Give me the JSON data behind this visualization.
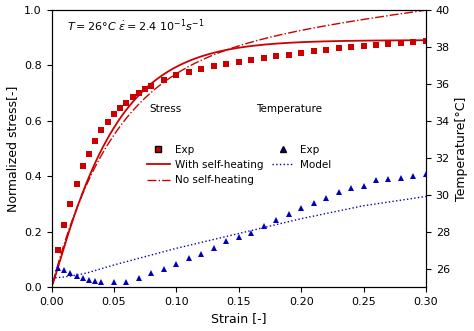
{
  "xlabel": "Strain [-]",
  "ylabel_left": "Normalized stress[-]",
  "ylabel_right": "Temperature[°C]",
  "xlim": [
    0,
    0.3
  ],
  "ylim_left": [
    0,
    1.0
  ],
  "ylim_right": [
    25,
    40
  ],
  "stress_exp_x": [
    0.005,
    0.01,
    0.015,
    0.02,
    0.025,
    0.03,
    0.035,
    0.04,
    0.045,
    0.05,
    0.055,
    0.06,
    0.065,
    0.07,
    0.075,
    0.08,
    0.09,
    0.1,
    0.11,
    0.12,
    0.13,
    0.14,
    0.15,
    0.16,
    0.17,
    0.18,
    0.19,
    0.2,
    0.21,
    0.22,
    0.23,
    0.24,
    0.25,
    0.26,
    0.27,
    0.28,
    0.29,
    0.3
  ],
  "stress_exp_y": [
    0.135,
    0.225,
    0.3,
    0.37,
    0.435,
    0.48,
    0.525,
    0.565,
    0.595,
    0.625,
    0.645,
    0.665,
    0.685,
    0.7,
    0.715,
    0.725,
    0.745,
    0.765,
    0.775,
    0.785,
    0.795,
    0.805,
    0.812,
    0.818,
    0.825,
    0.832,
    0.838,
    0.845,
    0.85,
    0.856,
    0.86,
    0.865,
    0.868,
    0.872,
    0.876,
    0.88,
    0.882,
    0.886
  ],
  "temp_exp_x": [
    0.005,
    0.01,
    0.015,
    0.02,
    0.025,
    0.03,
    0.035,
    0.04,
    0.05,
    0.06,
    0.07,
    0.08,
    0.09,
    0.1,
    0.11,
    0.12,
    0.13,
    0.14,
    0.15,
    0.16,
    0.17,
    0.18,
    0.19,
    0.2,
    0.21,
    0.22,
    0.23,
    0.24,
    0.25,
    0.26,
    0.27,
    0.28,
    0.29,
    0.3
  ],
  "temp_exp_y": [
    26.06,
    25.95,
    25.75,
    25.6,
    25.5,
    25.38,
    25.35,
    25.3,
    25.28,
    25.3,
    25.5,
    25.75,
    26.0,
    26.25,
    26.55,
    26.8,
    27.1,
    27.5,
    27.7,
    27.95,
    28.3,
    28.65,
    28.95,
    29.3,
    29.55,
    29.8,
    30.15,
    30.35,
    30.45,
    30.8,
    30.85,
    30.92,
    31.0,
    31.1
  ],
  "temp_model_x": [
    0.0,
    0.005,
    0.01,
    0.015,
    0.02,
    0.025,
    0.03,
    0.05,
    0.1,
    0.15,
    0.2,
    0.25,
    0.3
  ],
  "temp_model_y": [
    25.5,
    25.52,
    25.55,
    25.6,
    25.65,
    25.72,
    25.8,
    26.2,
    27.1,
    27.9,
    28.7,
    29.4,
    29.9
  ],
  "red_color": "#cc0000",
  "blue_color": "#0000bb",
  "background_color": "#ffffff",
  "annotation": "T = 26°C $\\dot{\\varepsilon}$ = 2.4 10$^{-1}$s$^{-1}$"
}
